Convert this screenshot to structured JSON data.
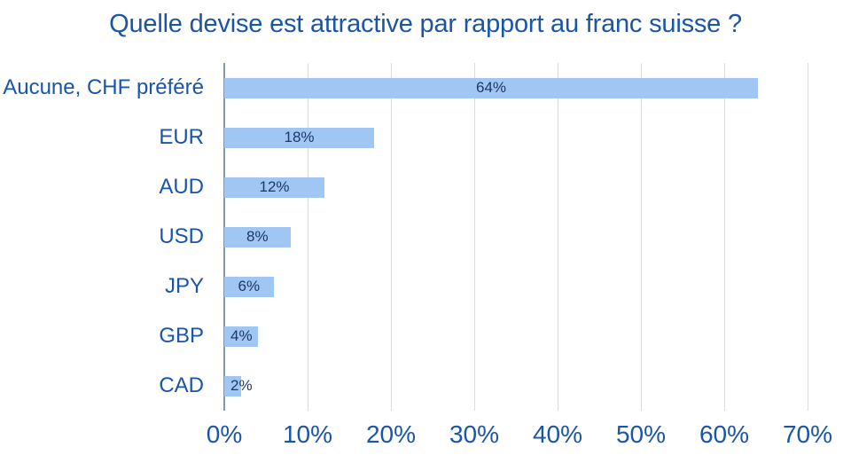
{
  "chart_data": {
    "type": "bar",
    "orientation": "horizontal",
    "title": "Quelle devise est attractive par rapport au franc suisse ?",
    "categories": [
      "Aucune, CHF préféré",
      "EUR",
      "AUD",
      "USD",
      "JPY",
      "GBP",
      "CAD"
    ],
    "values": [
      64,
      18,
      12,
      8,
      6,
      4,
      2
    ],
    "data_labels": [
      "64%",
      "18%",
      "12%",
      "8%",
      "6%",
      "4%",
      "2%"
    ],
    "xlabel": "",
    "ylabel": "",
    "xlim": [
      0,
      70
    ],
    "x_ticks": [
      {
        "value": 0,
        "label": "0%"
      },
      {
        "value": 10,
        "label": "10%"
      },
      {
        "value": 20,
        "label": "20%"
      },
      {
        "value": 30,
        "label": "30%"
      },
      {
        "value": 40,
        "label": "40%"
      },
      {
        "value": 50,
        "label": "50%"
      },
      {
        "value": 60,
        "label": "60%"
      },
      {
        "value": 70,
        "label": "70%"
      }
    ],
    "grid": "vertical-gridlines-only",
    "legend": "none",
    "data_label_position": "center-inside-clamped-left"
  },
  "colors": {
    "text_blue": "#1A55A8",
    "data_label": "#1F3864",
    "bar_fill": "#A0C6F3",
    "axis_line": "#8496B0",
    "gridline": "#D9DDDC",
    "background": "#FFFFFF"
  }
}
